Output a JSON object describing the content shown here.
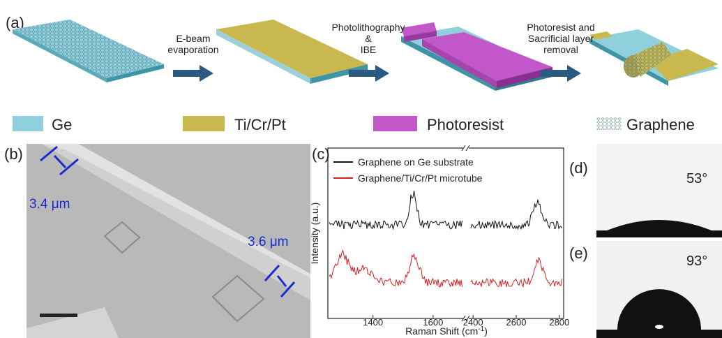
{
  "panel_a": {
    "label": "(a)",
    "steps": [
      [
        "E-beam",
        "evaporation"
      ],
      [
        "Photolithography",
        "&",
        "IBE"
      ],
      [
        "Photoresist and",
        "Sacrificial layer",
        "removal"
      ]
    ]
  },
  "legend": [
    "Ge",
    "Ti/Cr/Pt",
    "Photoresist",
    "Graphene"
  ],
  "panel_b": {
    "label": "(b)",
    "dimensions": [
      "3.4 μm",
      "3.6 μm"
    ]
  },
  "panel_c": {
    "label": "(c)",
    "series": [
      {
        "name": "Graphene on Ge substrate",
        "color": "#111111"
      },
      {
        "name": "Graphene/Ti/Cr/Pt microtube",
        "color": "#d42020"
      }
    ],
    "y_label": "Intensity (a.u.)",
    "x_label": [
      "Raman Shift (cm",
      "-1",
      ")"
    ],
    "x_ticks": [
      1400,
      1600,
      2400,
      2600,
      2800
    ]
  },
  "panel_d": {
    "label": "(d)",
    "angle": "53°"
  },
  "panel_e": {
    "label": "(e)",
    "angle": "93°"
  }
}
